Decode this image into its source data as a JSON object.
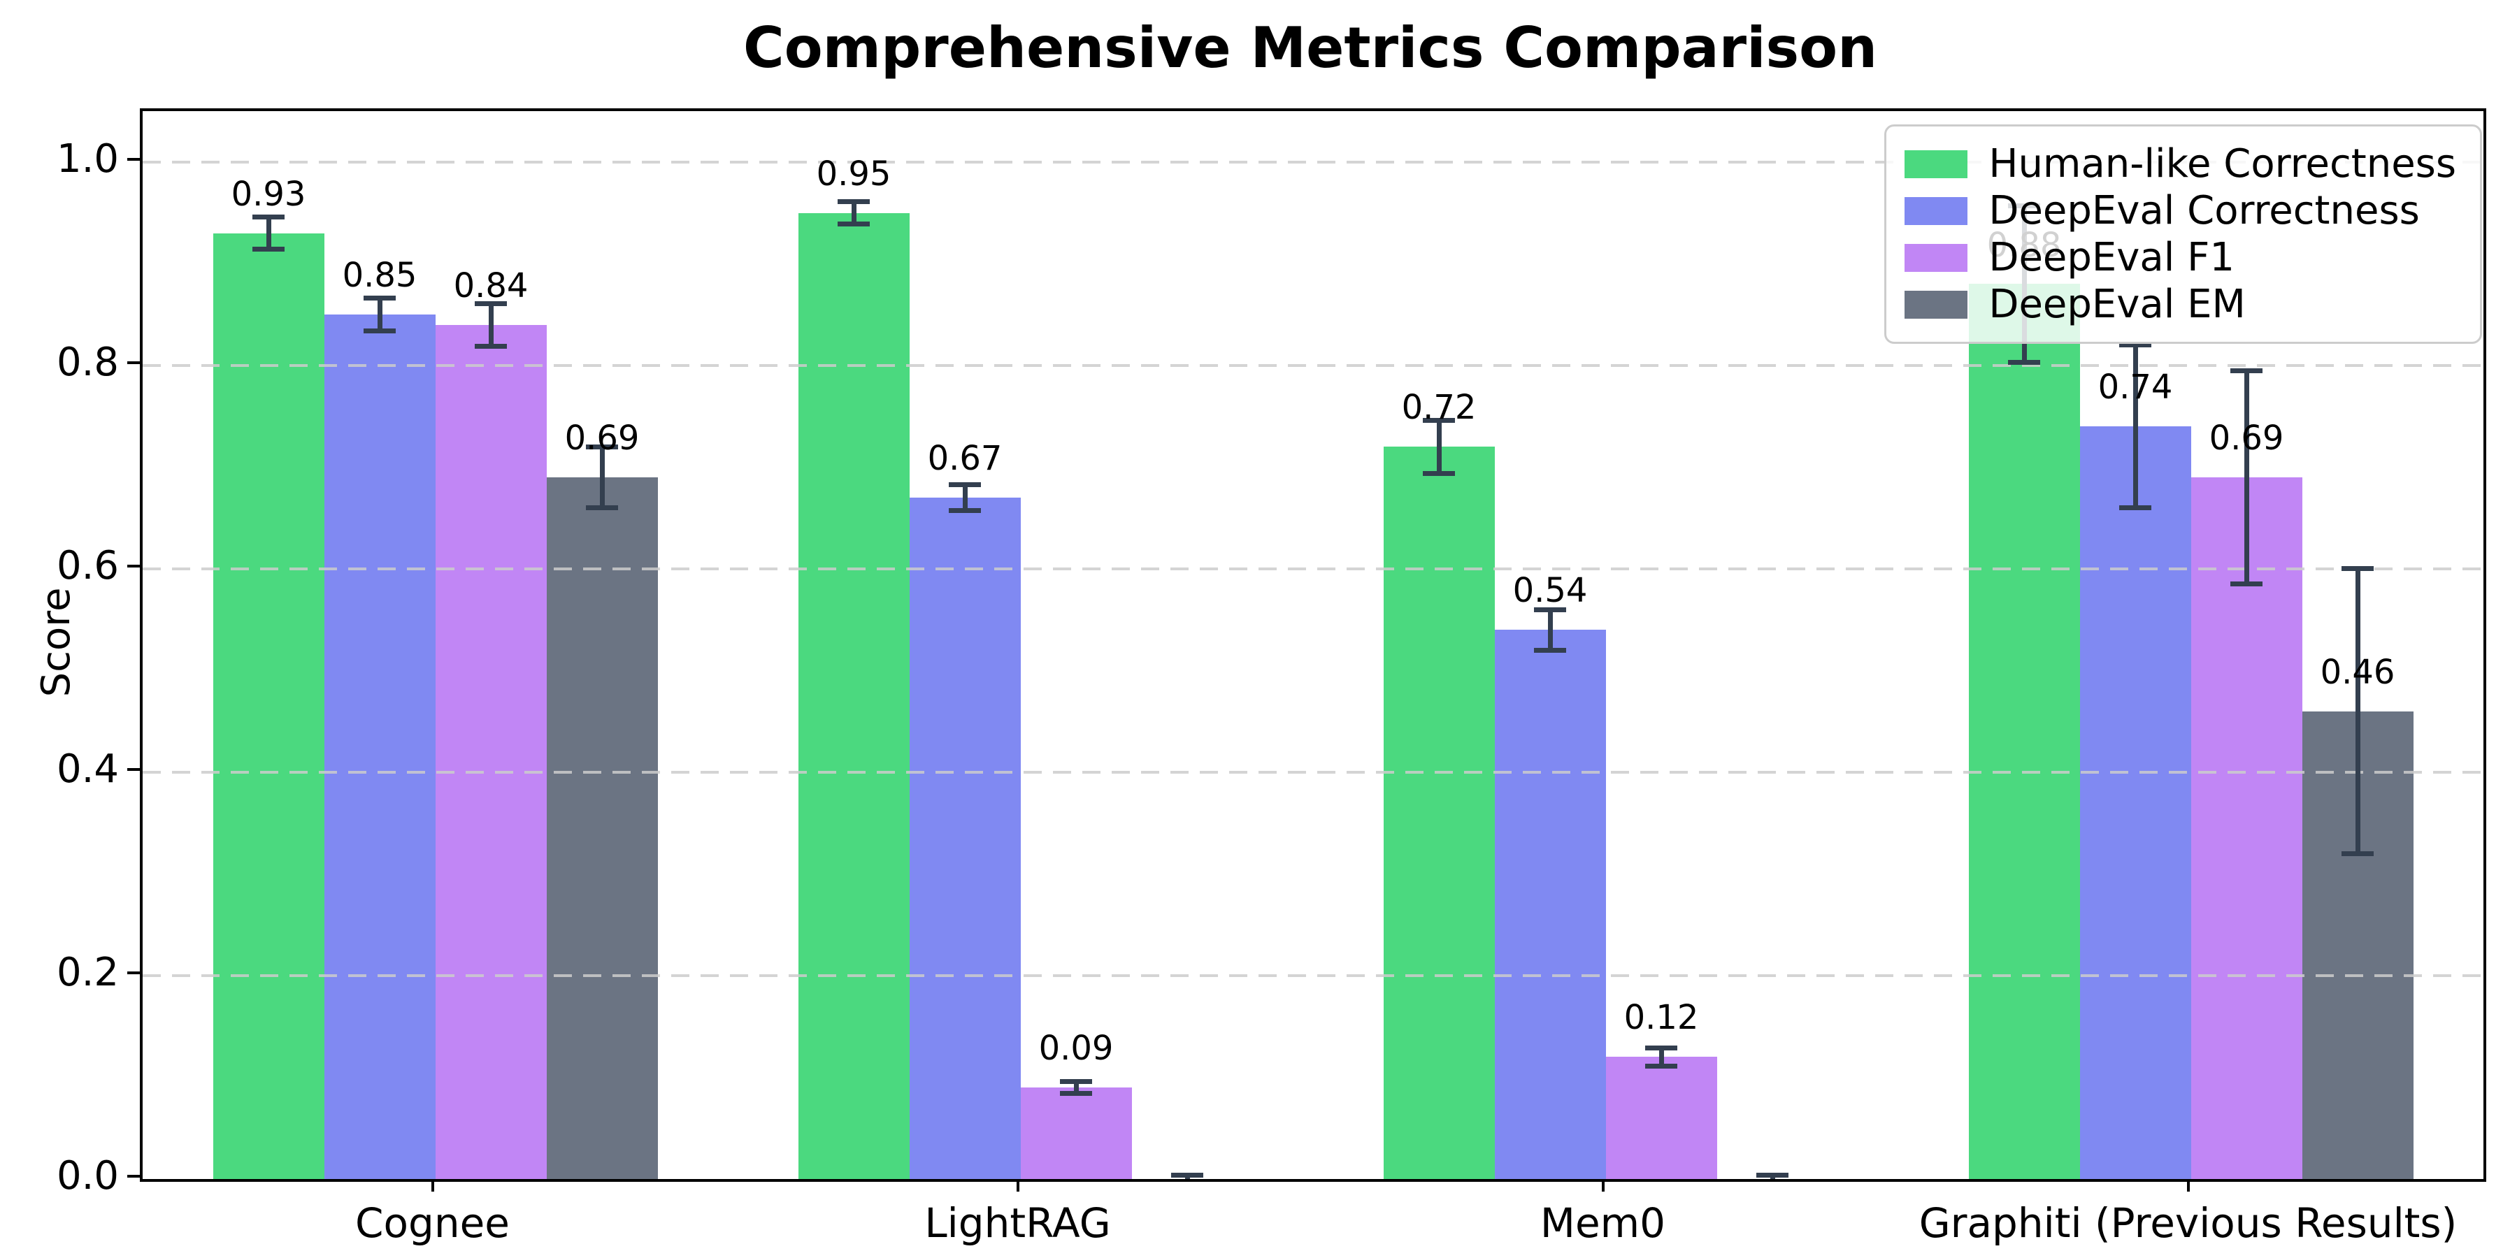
{
  "chart_data": {
    "type": "bar",
    "title": "Comprehensive Metrics Comparison",
    "xlabel": "",
    "ylabel": "Score",
    "ylim": [
      0,
      1.05
    ],
    "yticks": [
      0.0,
      0.2,
      0.4,
      0.6,
      0.8,
      1.0
    ],
    "ytick_labels": [
      "0.0",
      "0.2",
      "0.4",
      "0.6",
      "0.8",
      "1.0"
    ],
    "grid": "horizontal dashed, drawn over bars",
    "legend_position": "upper-right",
    "background_color": "#ffffff",
    "errorbar_color": "#333f4f",
    "gridline_color": "#cccccc",
    "legend_border_color": "#cccccc",
    "categories": [
      "Cognee",
      "LightRAG",
      "Mem0",
      "Graphiti (Previous Results)"
    ],
    "series": [
      {
        "name": "Human-like Correctness",
        "color": "#4bd97f",
        "values": [
          0.93,
          0.95,
          0.72,
          0.88
        ],
        "errors": [
          0.016,
          0.011,
          0.026,
          0.077
        ],
        "labels": [
          "0.93",
          "0.95",
          "0.72",
          "0.88"
        ]
      },
      {
        "name": "DeepEval Correctness",
        "color": "#8089f2",
        "values": [
          0.85,
          0.67,
          0.54,
          0.74
        ],
        "errors": [
          0.016,
          0.013,
          0.02,
          0.08
        ],
        "labels": [
          "0.85",
          "0.67",
          "0.54",
          "0.74"
        ]
      },
      {
        "name": "DeepEval F1",
        "color": "#c186f5",
        "values": [
          0.84,
          0.09,
          0.12,
          0.69
        ],
        "errors": [
          0.021,
          0.006,
          0.009,
          0.105
        ],
        "labels": [
          "0.84",
          "0.09",
          "0.12",
          "0.69"
        ]
      },
      {
        "name": "DeepEval EM",
        "color": "#6b7483",
        "values": [
          0.69,
          0.0,
          0.0,
          0.46
        ],
        "errors": [
          0.03,
          0.004,
          0.004,
          0.14
        ],
        "labels": [
          "0.69",
          "",
          "",
          "0.46"
        ]
      }
    ]
  }
}
